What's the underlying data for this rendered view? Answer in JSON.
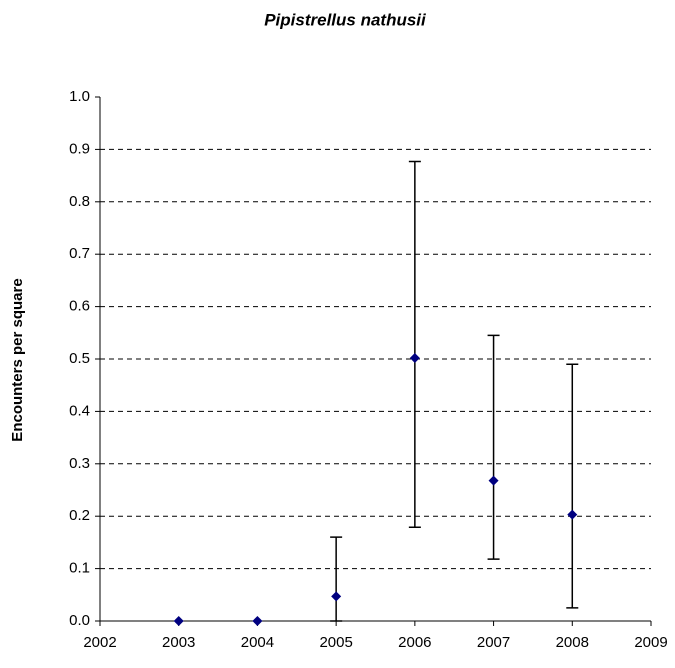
{
  "chart_data": {
    "type": "scatter",
    "title": "Pipistrellus nathusii",
    "y_label": "Encounters per square",
    "series": [
      {
        "color": "#000080",
        "x": [
          2003,
          2004,
          2005,
          2006,
          2007,
          2008
        ],
        "values": [
          0,
          0,
          0.047,
          0.502,
          0.268,
          0.203
        ],
        "lower": [
          null,
          null,
          0,
          0.179,
          0.118,
          0.025
        ],
        "upper": [
          null,
          null,
          0.16,
          0.877,
          0.545,
          0.49
        ]
      }
    ],
    "xlim": [
      2002,
      2009
    ],
    "xticks": [
      2002,
      2003,
      2004,
      2005,
      2006,
      2007,
      2008,
      2009
    ],
    "ylim": [
      0,
      1
    ],
    "yticks": [
      {
        "value": 0,
        "label": "0.0"
      },
      0.1,
      0.2,
      0.3,
      0.4,
      0.5,
      0.6,
      0.7,
      0.8,
      0.9,
      {
        "value": 1,
        "label": "1.0"
      }
    ],
    "grid": true
  }
}
